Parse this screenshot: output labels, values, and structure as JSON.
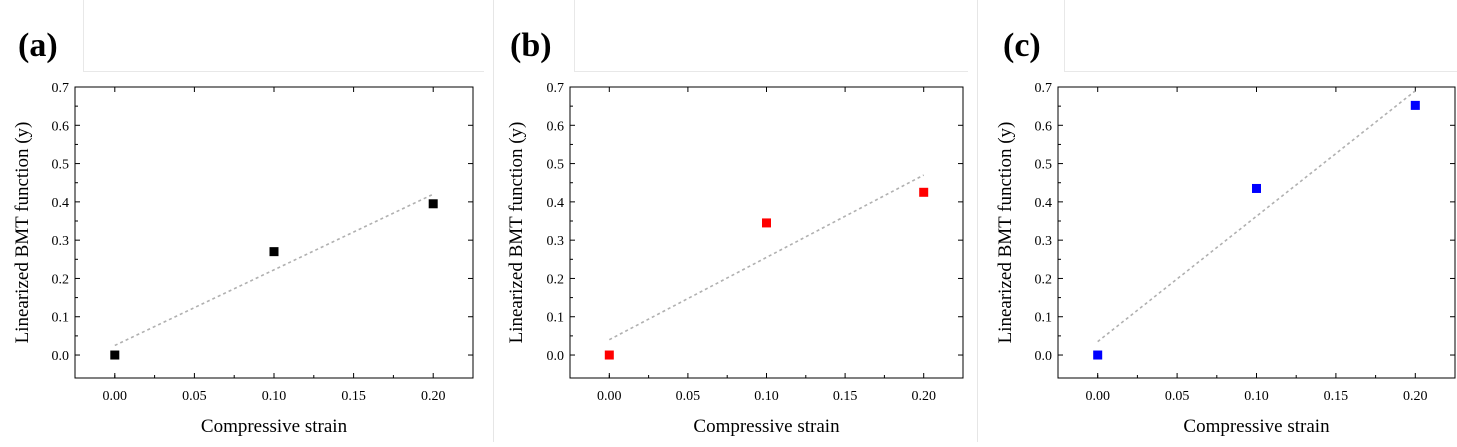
{
  "figure": {
    "panels": [
      "(a)",
      "(b)",
      "(c)"
    ]
  },
  "chart_data": [
    {
      "type": "scatter",
      "panel_label": "(a)",
      "xlabel": "Compressive strain",
      "ylabel": "Linearized BMT function (y)",
      "xlim": [
        -0.025,
        0.225
      ],
      "ylim": [
        -0.06,
        0.7
      ],
      "xticks": [
        "0.00",
        "0.05",
        "0.10",
        "0.15",
        "0.20"
      ],
      "yticks": [
        "0.0",
        "0.1",
        "0.2",
        "0.3",
        "0.4",
        "0.5",
        "0.6",
        "0.7"
      ],
      "grid": false,
      "marker_color": "#000000",
      "points": [
        {
          "x": 0.0,
          "y": 0.0
        },
        {
          "x": 0.1,
          "y": 0.27
        },
        {
          "x": 0.2,
          "y": 0.395
        }
      ],
      "fit_line": {
        "x": [
          0.0,
          0.2
        ],
        "y": [
          0.025,
          0.42
        ],
        "style": "dotted",
        "color": "#b0b0b0"
      }
    },
    {
      "type": "scatter",
      "panel_label": "(b)",
      "xlabel": "Compressive strain",
      "ylabel": "Linearized BMT function (y)",
      "xlim": [
        -0.025,
        0.225
      ],
      "ylim": [
        -0.06,
        0.7
      ],
      "xticks": [
        "0.00",
        "0.05",
        "0.10",
        "0.15",
        "0.20"
      ],
      "yticks": [
        "0.0",
        "0.1",
        "0.2",
        "0.3",
        "0.4",
        "0.5",
        "0.6",
        "0.7"
      ],
      "grid": false,
      "marker_color": "#ff0000",
      "points": [
        {
          "x": 0.0,
          "y": 0.0
        },
        {
          "x": 0.1,
          "y": 0.345
        },
        {
          "x": 0.2,
          "y": 0.425
        }
      ],
      "fit_line": {
        "x": [
          0.0,
          0.2
        ],
        "y": [
          0.04,
          0.47
        ],
        "style": "dotted",
        "color": "#b0b0b0"
      }
    },
    {
      "type": "scatter",
      "panel_label": "(c)",
      "xlabel": "Compressive strain",
      "ylabel": "Linearized BMT function (y)",
      "xlim": [
        -0.025,
        0.225
      ],
      "ylim": [
        -0.06,
        0.7
      ],
      "xticks": [
        "0.00",
        "0.05",
        "0.10",
        "0.15",
        "0.20"
      ],
      "yticks": [
        "0.0",
        "0.1",
        "0.2",
        "0.3",
        "0.4",
        "0.5",
        "0.6",
        "0.7"
      ],
      "grid": false,
      "marker_color": "#0000ff",
      "points": [
        {
          "x": 0.0,
          "y": 0.0
        },
        {
          "x": 0.1,
          "y": 0.435
        },
        {
          "x": 0.2,
          "y": 0.652
        }
      ],
      "fit_line": {
        "x": [
          0.0,
          0.2
        ],
        "y": [
          0.035,
          0.69
        ],
        "style": "dotted",
        "color": "#b0b0b0"
      }
    }
  ]
}
